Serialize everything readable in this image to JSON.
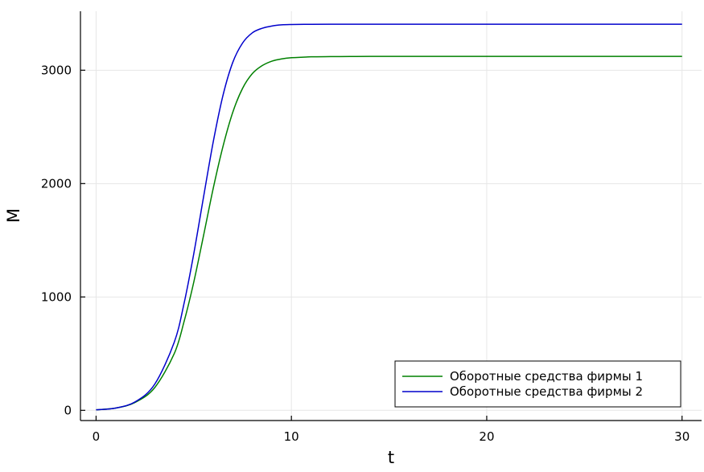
{
  "chart_data": {
    "type": "line",
    "title": "",
    "xlabel": "t",
    "ylabel": "M",
    "xlim": [
      -0.8,
      31.0
    ],
    "ylim": [
      -90,
      3520
    ],
    "xticks": [
      0,
      10,
      20,
      30
    ],
    "xtick_labels": [
      "0",
      "10",
      "20",
      "30"
    ],
    "yticks": [
      0,
      1000,
      2000,
      3000
    ],
    "ytick_labels": [
      "0",
      "1000",
      "2000",
      "3000"
    ],
    "grid": true,
    "legend_position": "bottom-right",
    "series": [
      {
        "name": "Оборотные средства фирмы 1",
        "color": "#008000",
        "x": [
          0,
          1,
          2,
          3,
          4,
          4.5,
          5,
          5.5,
          6,
          6.5,
          7,
          7.5,
          8,
          8.5,
          9,
          9.5,
          10,
          11,
          12,
          13,
          14,
          16,
          20,
          25,
          30
        ],
        "y": [
          5,
          20,
          70,
          200,
          500,
          780,
          1130,
          1540,
          1960,
          2330,
          2630,
          2840,
          2970,
          3040,
          3080,
          3100,
          3110,
          3118,
          3120,
          3121,
          3122,
          3122,
          3122,
          3122,
          3122
        ]
      },
      {
        "name": "Оборотные средства фирмы 2",
        "color": "#0000cc",
        "x": [
          0,
          1,
          2,
          3,
          4,
          4.5,
          5,
          5.5,
          6,
          6.5,
          7,
          7.5,
          8,
          8.5,
          9,
          9.5,
          10,
          11,
          12,
          13,
          14,
          16,
          20,
          25,
          30
        ],
        "y": [
          5,
          20,
          75,
          230,
          600,
          940,
          1380,
          1880,
          2370,
          2780,
          3070,
          3240,
          3330,
          3370,
          3390,
          3400,
          3403,
          3405,
          3406,
          3406,
          3406,
          3406,
          3406,
          3406,
          3406
        ]
      }
    ]
  }
}
